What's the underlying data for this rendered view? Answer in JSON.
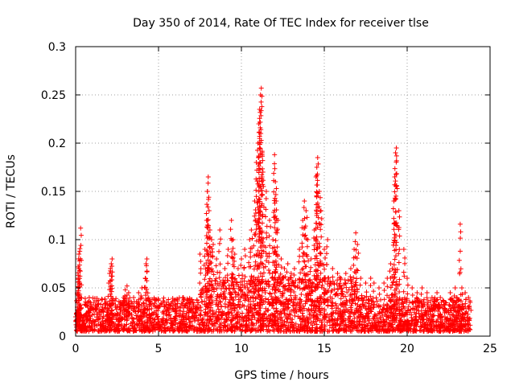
{
  "chart_data": {
    "type": "scatter",
    "title": "Day 350 of 2014, Rate Of TEC Index for receiver tlse",
    "xlabel": "GPS time / hours",
    "ylabel": "ROTI / TECUs",
    "xlim": [
      0,
      25
    ],
    "ylim": [
      0,
      0.3
    ],
    "xticks": [
      0,
      5,
      10,
      15,
      20,
      25
    ],
    "xtick_labels": [
      "0",
      "5",
      "10",
      "15",
      "20",
      "25"
    ],
    "yticks": [
      0,
      0.05,
      0.1,
      0.15,
      0.2,
      0.25,
      0.3
    ],
    "ytick_labels": [
      "0",
      "0.05",
      "0.1",
      "0.15",
      "0.2",
      "0.25",
      "0.3"
    ],
    "grid": true,
    "marker": "+",
    "color": "#ff0000",
    "series": [
      {
        "name": "ROTI",
        "x": [
          0.0,
          0.1,
          0.15,
          0.2,
          0.25,
          0.3,
          0.1,
          0.15,
          0.2,
          0.18,
          0.1,
          0.12,
          0.2,
          0.22,
          0.25,
          0.5,
          0.8,
          1.0,
          1.3,
          1.6,
          1.9,
          2.0,
          2.05,
          2.1,
          2.15,
          2.2,
          2.4,
          2.7,
          2.9,
          3.0,
          3.1,
          3.2,
          3.5,
          3.8,
          4.0,
          4.2,
          4.25,
          4.3,
          4.5,
          5.0,
          5.5,
          6.0,
          6.5,
          7.0,
          7.5,
          7.8,
          7.9,
          7.95,
          8.0,
          8.05,
          8.1,
          8.2,
          8.3,
          8.5,
          8.7,
          9.0,
          9.2,
          9.4,
          9.5,
          9.6,
          9.8,
          10.0,
          10.2,
          10.5,
          10.6,
          10.8,
          10.9,
          11.0,
          11.05,
          11.1,
          11.15,
          11.2,
          11.25,
          11.3,
          11.5,
          11.7,
          11.9,
          12.0,
          12.05,
          12.1,
          12.2,
          12.4,
          12.6,
          12.8,
          13.0,
          13.2,
          13.5,
          13.7,
          13.8,
          13.9,
          14.0,
          14.2,
          14.4,
          14.5,
          14.55,
          14.6,
          14.7,
          14.8,
          15.0,
          15.2,
          15.5,
          15.8,
          16.0,
          16.3,
          16.6,
          16.8,
          16.9,
          17.0,
          17.2,
          17.5,
          17.8,
          18.0,
          18.3,
          18.6,
          18.8,
          19.0,
          19.1,
          19.2,
          19.25,
          19.3,
          19.35,
          19.5,
          19.8,
          20.0,
          20.3,
          20.6,
          20.9,
          21.2,
          21.5,
          21.8,
          22.0,
          22.3,
          22.6,
          22.9,
          23.0,
          23.2,
          23.3,
          23.5,
          23.7,
          23.8
        ],
        "y": [
          0.02,
          0.045,
          0.06,
          0.085,
          0.088,
          0.112,
          0.03,
          0.05,
          0.07,
          0.08,
          0.015,
          0.02,
          0.025,
          0.018,
          0.012,
          0.02,
          0.025,
          0.022,
          0.03,
          0.028,
          0.025,
          0.055,
          0.065,
          0.07,
          0.075,
          0.08,
          0.03,
          0.035,
          0.04,
          0.048,
          0.052,
          0.045,
          0.04,
          0.045,
          0.05,
          0.06,
          0.075,
          0.08,
          0.035,
          0.03,
          0.035,
          0.032,
          0.04,
          0.038,
          0.085,
          0.09,
          0.12,
          0.15,
          0.165,
          0.13,
          0.11,
          0.1,
          0.095,
          0.08,
          0.11,
          0.07,
          0.09,
          0.12,
          0.1,
          0.085,
          0.07,
          0.08,
          0.09,
          0.1,
          0.11,
          0.14,
          0.18,
          0.2,
          0.22,
          0.235,
          0.25,
          0.257,
          0.19,
          0.17,
          0.15,
          0.12,
          0.1,
          0.188,
          0.16,
          0.14,
          0.12,
          0.08,
          0.07,
          0.075,
          0.065,
          0.07,
          0.09,
          0.12,
          0.14,
          0.13,
          0.1,
          0.08,
          0.11,
          0.165,
          0.175,
          0.185,
          0.15,
          0.13,
          0.09,
          0.1,
          0.07,
          0.065,
          0.06,
          0.065,
          0.07,
          0.09,
          0.107,
          0.095,
          0.06,
          0.055,
          0.06,
          0.055,
          0.05,
          0.055,
          0.06,
          0.075,
          0.07,
          0.14,
          0.165,
          0.19,
          0.195,
          0.13,
          0.09,
          0.06,
          0.05,
          0.045,
          0.05,
          0.045,
          0.04,
          0.045,
          0.04,
          0.035,
          0.045,
          0.05,
          0.04,
          0.116,
          0.05,
          0.045,
          0.04,
          0.035
        ]
      }
    ],
    "baseline_band": {
      "description": "dense noise floor",
      "x_range": [
        0,
        23.8
      ],
      "y_range": [
        0.005,
        0.04
      ]
    }
  }
}
